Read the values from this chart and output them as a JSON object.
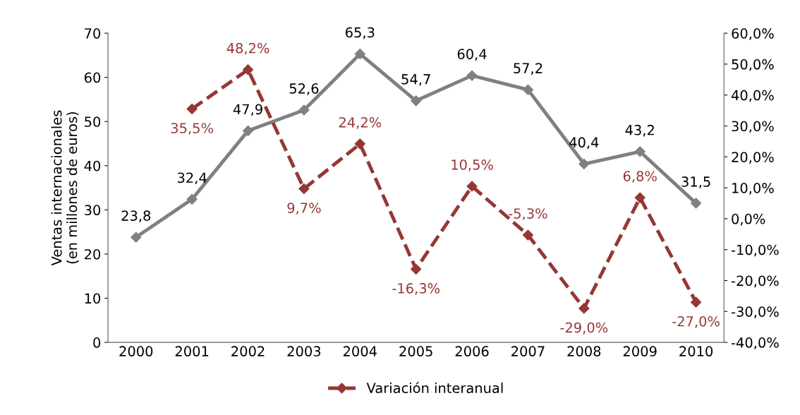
{
  "chart_data": {
    "type": "line",
    "ylabel": "Ventas internacionales\n(en millones de euros)",
    "categories": [
      "2000",
      "2001",
      "2002",
      "2003",
      "2004",
      "2005",
      "2006",
      "2007",
      "2008",
      "2009",
      "2010"
    ],
    "series": [
      {
        "color": "#808080",
        "marker": "diamond",
        "line_style": "solid",
        "values": [
          23.8,
          32.4,
          47.9,
          52.6,
          65.3,
          54.7,
          60.4,
          57.2,
          40.4,
          43.2,
          31.5
        ],
        "value_labels": [
          "23,8",
          "32,4",
          "47,9",
          "52,6",
          "65,3",
          "54,7",
          "60,4",
          "57,2",
          "40,4",
          "43,2",
          "31,5"
        ]
      },
      {
        "name": "Variación interanual",
        "axis": "y2",
        "color": "#953735",
        "marker": "diamond",
        "line_style": "dashed",
        "values": [
          null,
          35.5,
          48.2,
          9.7,
          24.2,
          -16.3,
          10.5,
          -5.3,
          -29.0,
          6.8,
          -27.0
        ],
        "value_labels": [
          null,
          "35,5%",
          "48,2%",
          "9,7%",
          "24,2%",
          "-16,3%",
          "10,5%",
          "-5,3%",
          "-29,0%",
          "6,8%",
          "-27,0%"
        ]
      }
    ],
    "ylim": [
      0,
      70
    ],
    "yticks": [
      0,
      10,
      20,
      30,
      40,
      50,
      60,
      70
    ],
    "y2lim": [
      -40,
      60
    ],
    "y2ticks": [
      {
        "value": -40,
        "label": "-40,0%"
      },
      {
        "value": -30,
        "label": "-30,0%"
      },
      {
        "value": -20,
        "label": "-20,0%"
      },
      {
        "value": -10,
        "label": "-10,0%"
      },
      {
        "value": 0,
        "label": "0,0%"
      },
      {
        "value": 10,
        "label": "10,0%"
      },
      {
        "value": 20,
        "label": "20,0%"
      },
      {
        "value": 30,
        "label": "30,0%"
      },
      {
        "value": 40,
        "label": "40,0%"
      },
      {
        "value": 50,
        "label": "50,0%"
      },
      {
        "value": 60,
        "label": "60,0%"
      }
    ],
    "grid": false,
    "legend": "bottom"
  }
}
